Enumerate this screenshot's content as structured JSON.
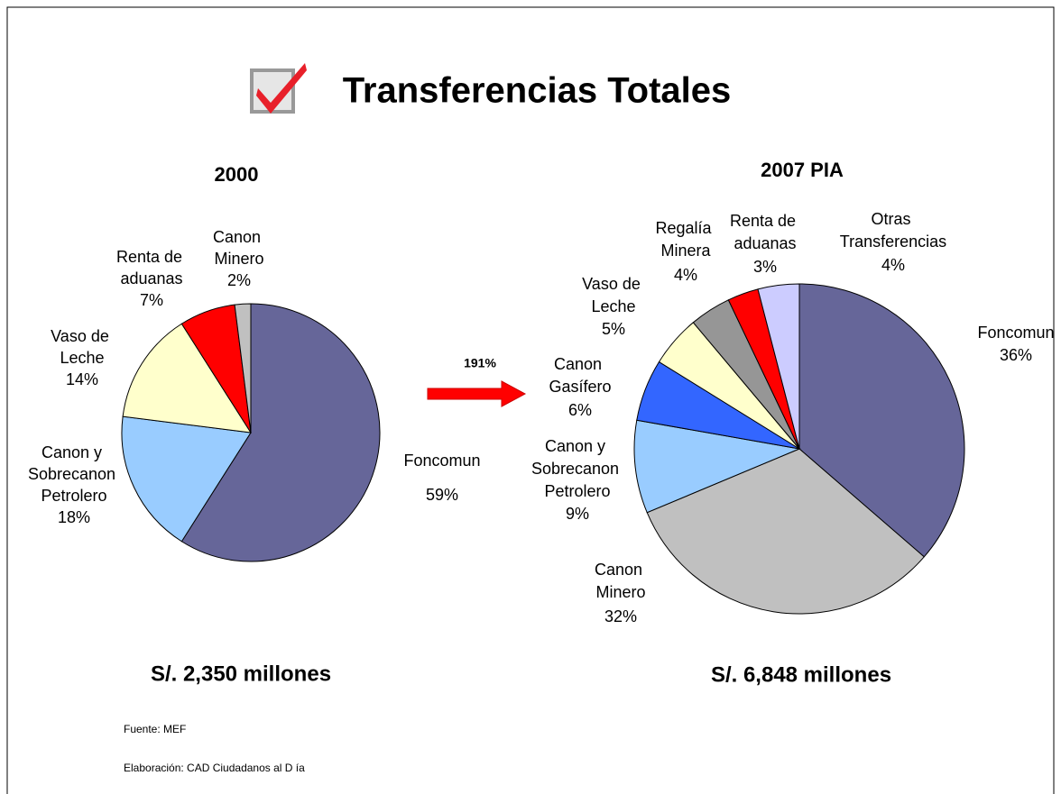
{
  "title": "Transferencias Totales",
  "arrow_label": "191%",
  "footer": [
    "Fuente: MEF",
    "Elaboración: CAD Ciudadanos al D ía"
  ],
  "chart_data": [
    {
      "type": "pie",
      "title": "2000",
      "caption": "S/. 2,350 millones",
      "categories": [
        "Foncomun",
        "Canon y Sobrecanon Petrolero",
        "Vaso de Leche",
        "Renta de aduanas",
        "Canon Minero"
      ],
      "values": [
        59,
        18,
        14,
        7,
        2
      ],
      "value_labels": [
        "59%",
        "18%",
        "14%",
        "7%",
        "2%"
      ],
      "colors": [
        "#666699",
        "#99ccff",
        "#ffffcc",
        "#ff0000",
        "#c0c0c0"
      ]
    },
    {
      "type": "pie",
      "title": "2007 PIA",
      "caption": "S/. 6,848 millones",
      "categories": [
        "Foncomun",
        "Canon Minero",
        "Canon y Sobrecanon Petrolero",
        "Canon Gasífero",
        "Vaso de Leche",
        "Regalía Minera",
        "Renta de aduanas",
        "Otras Transferencias"
      ],
      "values": [
        36,
        32,
        9,
        6,
        5,
        4,
        3,
        4
      ],
      "value_labels": [
        "36%",
        "32%",
        "9%",
        "6%",
        "5%",
        "4%",
        "3%",
        "4%"
      ],
      "colors": [
        "#666699",
        "#c0c0c0",
        "#99ccff",
        "#3366ff",
        "#ffffcc",
        "#969696",
        "#ff0000",
        "#ccccff"
      ]
    }
  ]
}
